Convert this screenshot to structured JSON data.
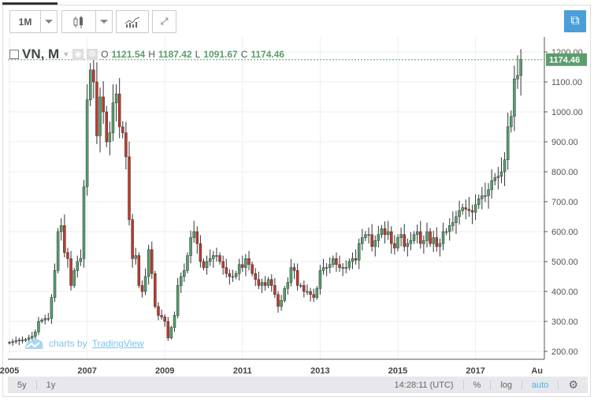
{
  "toolbar": {
    "interval": "1M",
    "fullscreen_icon": "expand-icon",
    "popout_icon": "popout-icon"
  },
  "legend": {
    "symbol": "VN, M",
    "o_label": "O",
    "o": "1121.54",
    "h_label": "H",
    "h": "1187.42",
    "l_label": "L",
    "l": "1091.67",
    "c_label": "C",
    "c": "1174.46"
  },
  "watermark": {
    "prefix": "charts by",
    "brand": "TradingView"
  },
  "bottom": {
    "range_5y": "5y",
    "range_1y": "1y",
    "time": "14:28:11 (UTC)",
    "percent": "%",
    "log": "log",
    "auto": "auto"
  },
  "colors": {
    "up": "#53a16e",
    "down": "#c0392b",
    "last": "#5c9d6e",
    "accent": "#4ab3e6"
  },
  "chart_data": {
    "type": "candlestick",
    "title": "VN, M",
    "ylim": [
      170,
      1220
    ],
    "yticks": [
      "200.00",
      "300.00",
      "400.00",
      "500.00",
      "600.00",
      "700.00",
      "800.00",
      "900.00",
      "1000.00",
      "1100.00",
      "1200.00"
    ],
    "xticks": [
      "2005",
      "2007",
      "2009",
      "2011",
      "2013",
      "2015",
      "2017",
      "Au"
    ],
    "last_price": "1174.46",
    "start": "2005-01",
    "closes": [
      230,
      232,
      235,
      238,
      236,
      240,
      245,
      250,
      265,
      300,
      305,
      310,
      310,
      380,
      470,
      600,
      620,
      530,
      510,
      420,
      470,
      500,
      510,
      750,
      1040,
      1140,
      1100,
      920,
      1050,
      1000,
      900,
      930,
      1030,
      1060,
      950,
      930,
      850,
      640,
      510,
      520,
      420,
      400,
      450,
      540,
      460,
      350,
      320,
      315,
      300,
      245,
      280,
      320,
      420,
      450,
      470,
      520,
      580,
      600,
      560,
      500,
      480,
      500,
      510,
      520,
      520,
      500,
      480,
      460,
      450,
      450,
      460,
      490,
      480,
      510,
      490,
      460,
      440,
      420,
      430,
      420,
      440,
      420,
      390,
      350,
      370,
      410,
      430,
      480,
      470,
      420,
      420,
      400,
      400,
      390,
      380,
      410,
      470,
      480,
      480,
      490,
      510,
      490,
      480,
      480,
      480,
      500,
      510,
      505,
      560,
      580,
      590,
      590,
      550,
      570,
      590,
      610,
      590,
      600,
      560,
      545,
      580,
      590,
      550,
      560,
      570,
      590,
      600,
      560,
      570,
      600,
      560,
      580,
      550,
      560,
      600,
      600,
      620,
      630,
      650,
      670,
      680,
      675,
      670,
      665,
      690,
      710,
      720,
      720,
      740,
      770,
      780,
      785,
      800,
      840,
      950,
      985,
      1110,
      1121.54,
      1174.46
    ]
  }
}
